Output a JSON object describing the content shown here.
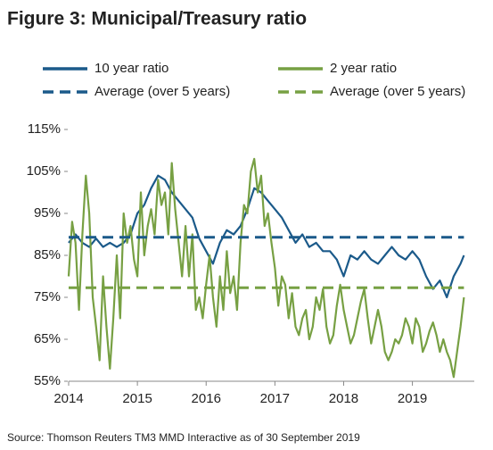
{
  "chart_data": {
    "type": "line",
    "title": "Figure 3: Municipal/Treasury ratio",
    "source": "Source: Thomson Reuters TM3 MMD Interactive as of 30 September 2019",
    "xlim": [
      2014,
      2019.9
    ],
    "xticks": [
      2014,
      2015,
      2016,
      2017,
      2018,
      2019
    ],
    "ylim": [
      55,
      115
    ],
    "yticks": [
      {
        "value": 55,
        "label": "55%"
      },
      {
        "value": 65,
        "label": "65%"
      },
      {
        "value": 75,
        "label": "75%"
      },
      {
        "value": 85,
        "label": "85%"
      },
      {
        "value": 95,
        "label": "95%"
      },
      {
        "value": 105,
        "label": "105%"
      },
      {
        "value": 115,
        "label": "115%"
      }
    ],
    "series": [
      {
        "name": "10 year ratio",
        "color": "#1b5a8a",
        "dashed": false,
        "x": [
          2014.0,
          2014.1,
          2014.2,
          2014.3,
          2014.4,
          2014.5,
          2014.6,
          2014.7,
          2014.8,
          2014.9,
          2015.0,
          2015.1,
          2015.2,
          2015.3,
          2015.4,
          2015.5,
          2015.6,
          2015.7,
          2015.8,
          2015.9,
          2016.0,
          2016.1,
          2016.2,
          2016.3,
          2016.4,
          2016.5,
          2016.6,
          2016.7,
          2016.8,
          2016.9,
          2017.0,
          2017.1,
          2017.2,
          2017.3,
          2017.4,
          2017.5,
          2017.6,
          2017.7,
          2017.8,
          2017.9,
          2018.0,
          2018.1,
          2018.2,
          2018.3,
          2018.4,
          2018.5,
          2018.6,
          2018.7,
          2018.8,
          2018.9,
          2019.0,
          2019.1,
          2019.2,
          2019.3,
          2019.4,
          2019.5,
          2019.6,
          2019.7,
          2019.75
        ],
        "values": [
          88,
          90,
          88,
          87,
          89,
          87,
          88,
          87,
          88,
          90,
          95,
          97,
          101,
          104,
          103,
          100,
          98,
          96,
          94,
          89,
          86,
          83,
          88,
          91,
          90,
          92,
          96,
          101,
          100,
          98,
          96,
          94,
          91,
          88,
          90,
          87,
          88,
          86,
          86,
          84,
          80,
          85,
          84,
          86,
          84,
          83,
          85,
          87,
          85,
          84,
          86,
          84,
          80,
          77,
          79,
          75,
          80,
          83,
          85
        ]
      },
      {
        "name": "2 year ratio",
        "color": "#77a043",
        "dashed": false,
        "x": [
          2014.0,
          2014.05,
          2014.1,
          2014.15,
          2014.2,
          2014.25,
          2014.3,
          2014.35,
          2014.4,
          2014.45,
          2014.5,
          2014.55,
          2014.6,
          2014.65,
          2014.7,
          2014.75,
          2014.8,
          2014.85,
          2014.9,
          2014.95,
          2015.0,
          2015.05,
          2015.1,
          2015.15,
          2015.2,
          2015.25,
          2015.3,
          2015.35,
          2015.4,
          2015.45,
          2015.5,
          2015.55,
          2015.6,
          2015.65,
          2015.7,
          2015.75,
          2015.8,
          2015.85,
          2015.9,
          2015.95,
          2016.0,
          2016.05,
          2016.1,
          2016.15,
          2016.2,
          2016.25,
          2016.3,
          2016.35,
          2016.4,
          2016.45,
          2016.5,
          2016.55,
          2016.6,
          2016.65,
          2016.7,
          2016.75,
          2016.8,
          2016.85,
          2016.9,
          2016.95,
          2017.0,
          2017.05,
          2017.1,
          2017.15,
          2017.2,
          2017.25,
          2017.3,
          2017.35,
          2017.4,
          2017.45,
          2017.5,
          2017.55,
          2017.6,
          2017.65,
          2017.7,
          2017.75,
          2017.8,
          2017.85,
          2017.9,
          2017.95,
          2018.0,
          2018.05,
          2018.1,
          2018.15,
          2018.2,
          2018.25,
          2018.3,
          2018.35,
          2018.4,
          2018.45,
          2018.5,
          2018.55,
          2018.6,
          2018.65,
          2018.7,
          2018.75,
          2018.8,
          2018.85,
          2018.9,
          2018.95,
          2019.0,
          2019.05,
          2019.1,
          2019.15,
          2019.2,
          2019.25,
          2019.3,
          2019.35,
          2019.4,
          2019.45,
          2019.5,
          2019.55,
          2019.6,
          2019.65,
          2019.7,
          2019.75
        ],
        "values": [
          80,
          93,
          88,
          72,
          90,
          104,
          95,
          75,
          68,
          60,
          80,
          68,
          58,
          70,
          85,
          70,
          95,
          88,
          92,
          84,
          80,
          100,
          85,
          92,
          96,
          90,
          103,
          97,
          100,
          90,
          107,
          96,
          88,
          80,
          92,
          80,
          90,
          72,
          75,
          70,
          78,
          85,
          75,
          68,
          80,
          72,
          86,
          76,
          80,
          72,
          88,
          97,
          95,
          105,
          108,
          100,
          104,
          92,
          95,
          88,
          82,
          73,
          80,
          78,
          70,
          76,
          68,
          66,
          70,
          72,
          65,
          68,
          75,
          72,
          77,
          68,
          64,
          66,
          73,
          78,
          72,
          68,
          64,
          66,
          70,
          74,
          77,
          70,
          64,
          68,
          72,
          68,
          62,
          60,
          62,
          65,
          64,
          66,
          70,
          68,
          64,
          70,
          68,
          62,
          64,
          67,
          69,
          66,
          62,
          65,
          62,
          60,
          56,
          62,
          68,
          75
        ]
      },
      {
        "name": "Average (over 5 years)",
        "color": "#1b5a8a",
        "dashed": true,
        "x": [
          2014.0,
          2019.75
        ],
        "values": [
          89.3,
          89.3
        ]
      },
      {
        "name": "Average (over 5 years)",
        "color": "#77a043",
        "dashed": true,
        "x": [
          2014.0,
          2019.75
        ],
        "values": [
          77.3,
          77.3
        ]
      }
    ]
  }
}
